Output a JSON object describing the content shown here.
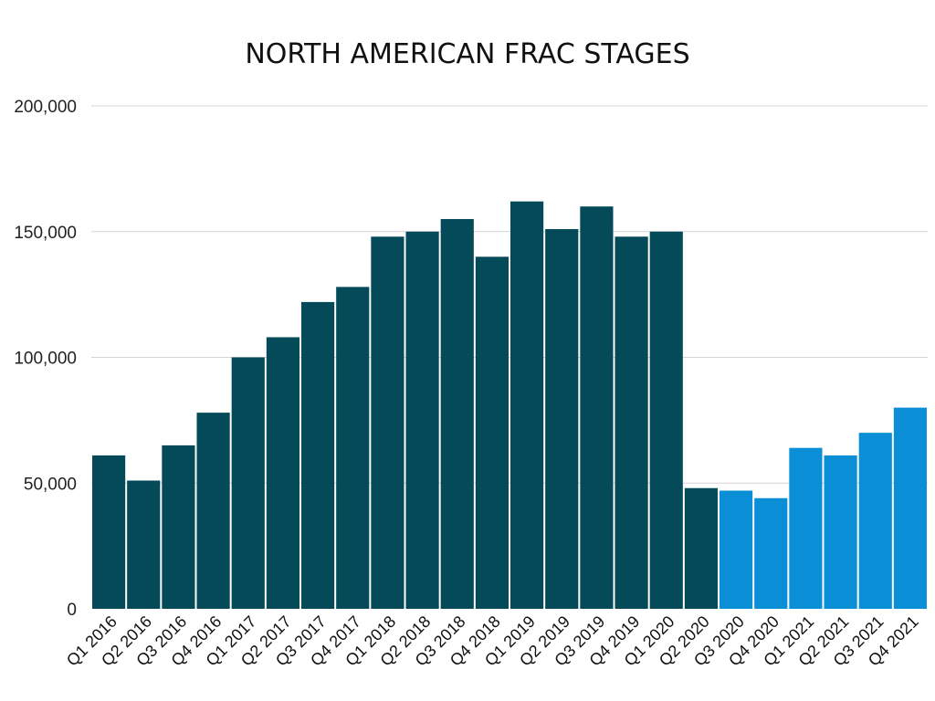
{
  "chart_data": {
    "type": "bar",
    "title": "NORTH AMERICAN FRAC STAGES",
    "xlabel": "",
    "ylabel": "",
    "ylim": [
      0,
      200000
    ],
    "yticks": [
      0,
      50000,
      100000,
      150000,
      200000
    ],
    "ytick_labels": [
      "0",
      "50,000",
      "100,000",
      "150,000",
      "200,000"
    ],
    "grid": true,
    "categories": [
      "Q1 2016",
      "Q2 2016",
      "Q3 2016",
      "Q4 2016",
      "Q1 2017",
      "Q2 2017",
      "Q3 2017",
      "Q4 2017",
      "Q1 2018",
      "Q2 2018",
      "Q3 2018",
      "Q4 2018",
      "Q1 2019",
      "Q2 2019",
      "Q3 2019",
      "Q4 2019",
      "Q1 2020",
      "Q2 2020",
      "Q3 2020",
      "Q4 2020",
      "Q1 2021",
      "Q2 2021",
      "Q3 2021",
      "Q4 2021"
    ],
    "values": [
      61000,
      51000,
      65000,
      78000,
      100000,
      108000,
      122000,
      128000,
      148000,
      150000,
      155000,
      140000,
      162000,
      151000,
      160000,
      148000,
      150000,
      48000,
      47000,
      44000,
      64000,
      61000,
      70000,
      80000
    ],
    "bar_colors": [
      "#054a59",
      "#054a59",
      "#054a59",
      "#054a59",
      "#054a59",
      "#054a59",
      "#054a59",
      "#054a59",
      "#054a59",
      "#054a59",
      "#054a59",
      "#054a59",
      "#054a59",
      "#054a59",
      "#054a59",
      "#054a59",
      "#054a59",
      "#054a59",
      "#0a8fd6",
      "#0a8fd6",
      "#0a8fd6",
      "#0a8fd6",
      "#0a8fd6",
      "#0a8fd6"
    ]
  }
}
